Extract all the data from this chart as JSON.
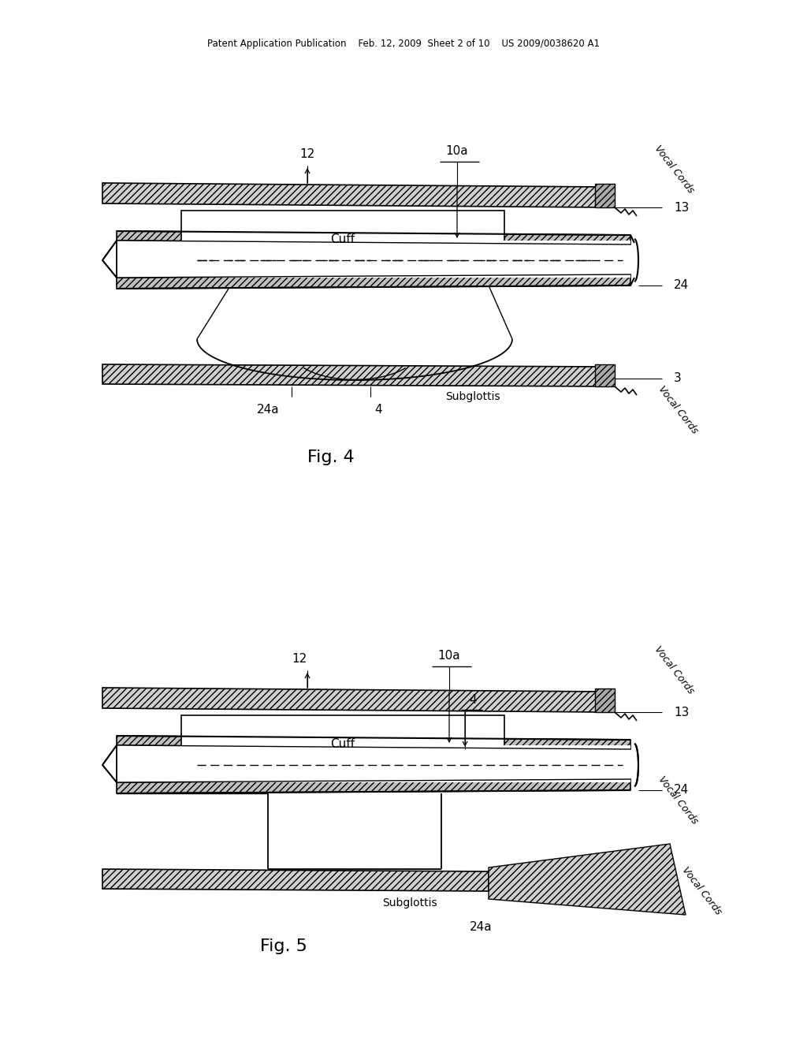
{
  "bg_color": "#ffffff",
  "line_color": "#000000",
  "header_text": "Patent Application Publication    Feb. 12, 2009  Sheet 2 of 10    US 2009/0038620 A1",
  "fig4_label": "Fig. 4",
  "fig5_label": "Fig. 5"
}
